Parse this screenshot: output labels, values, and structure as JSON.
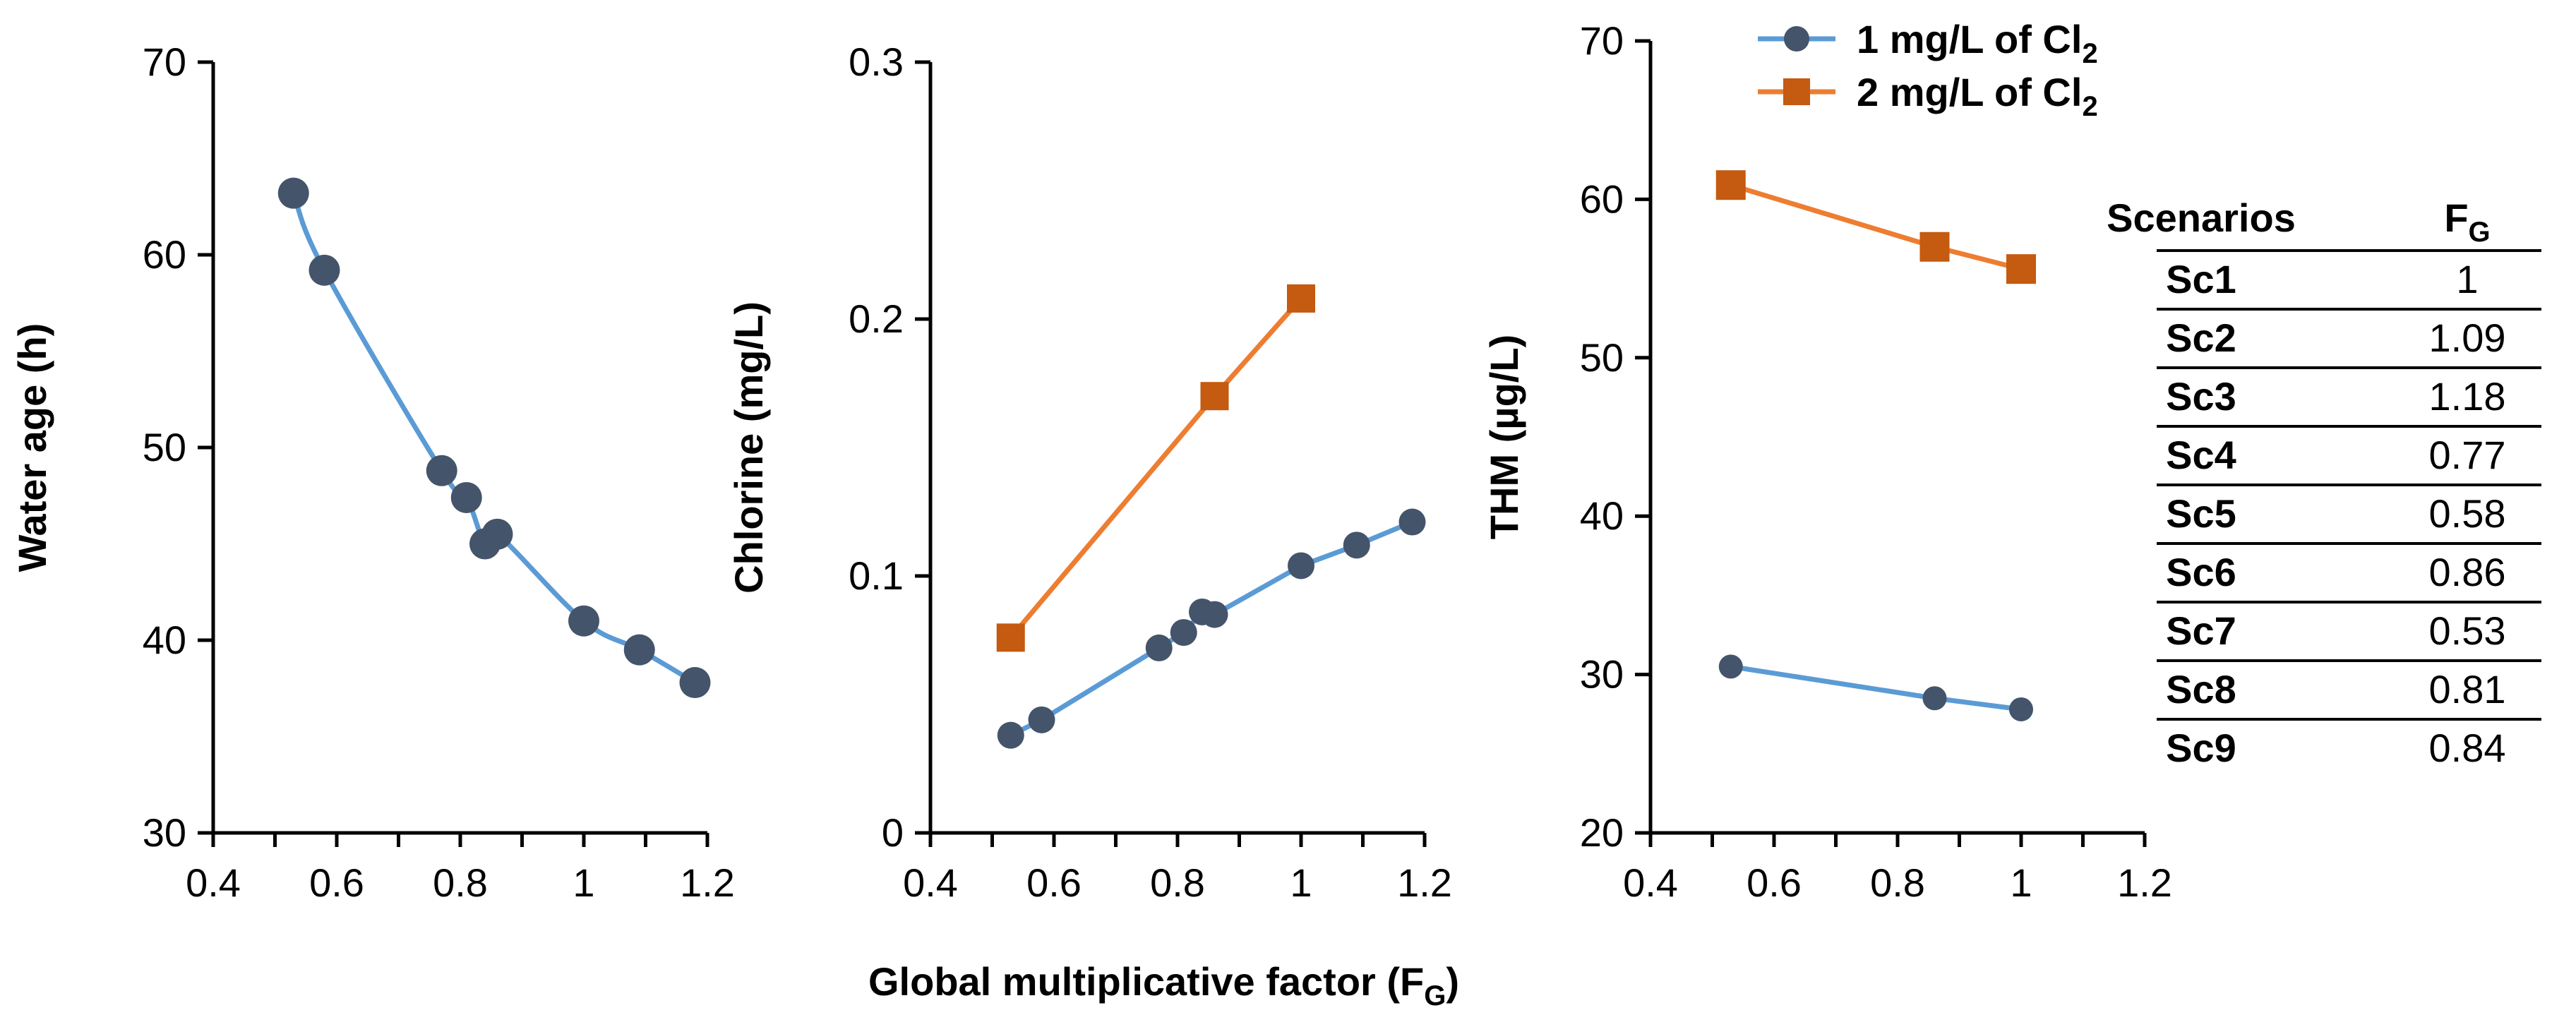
{
  "chart_data": [
    {
      "type": "line",
      "ylabel": "Water age (h)",
      "xlim": [
        0.4,
        1.2
      ],
      "ylim": [
        30,
        70
      ],
      "x_ticks": [
        "0.4",
        "0.6",
        "0.8",
        "1",
        "1.2"
      ],
      "y_ticks": [
        "30",
        "40",
        "50",
        "60",
        "70"
      ],
      "series": [
        {
          "name": "Water age",
          "color": "#5B9BD5",
          "marker_color": "#44546A",
          "marker": "circle",
          "x": [
            0.53,
            0.58,
            0.77,
            0.81,
            0.84,
            0.86,
            1.0,
            1.09,
            1.18
          ],
          "y": [
            63.2,
            59.2,
            48.8,
            47.4,
            45.0,
            45.5,
            41.0,
            39.5,
            37.8
          ]
        }
      ]
    },
    {
      "type": "line",
      "ylabel": "Chlorine (mg/L)",
      "xlim": [
        0.4,
        1.2
      ],
      "ylim": [
        0,
        0.3
      ],
      "x_ticks": [
        "0.4",
        "0.6",
        "0.8",
        "1",
        "1.2"
      ],
      "y_ticks": [
        "0",
        "0.1",
        "0.2",
        "0.3"
      ],
      "series": [
        {
          "name": "1 mg/L of Cl2",
          "color": "#5B9BD5",
          "marker_color": "#44546A",
          "marker": "circle",
          "x": [
            0.53,
            0.58,
            0.77,
            0.81,
            0.84,
            0.86,
            1.0,
            1.09,
            1.18
          ],
          "y": [
            0.038,
            0.044,
            0.072,
            0.078,
            0.086,
            0.085,
            0.104,
            0.112,
            0.121
          ]
        },
        {
          "name": "2 mg/L of Cl2",
          "color": "#ED7D31",
          "marker_color": "#C55A11",
          "marker": "square",
          "x": [
            0.53,
            0.86,
            1.0
          ],
          "y": [
            0.076,
            0.17,
            0.208
          ]
        }
      ]
    },
    {
      "type": "line",
      "ylabel": "THM (µg/L)",
      "xlim": [
        0.4,
        1.2
      ],
      "ylim": [
        20,
        70
      ],
      "x_ticks": [
        "0.4",
        "0.6",
        "0.8",
        "1",
        "1.2"
      ],
      "y_ticks": [
        "20",
        "30",
        "40",
        "50",
        "60",
        "70"
      ],
      "series": [
        {
          "name": "1 mg/L of Cl2",
          "color": "#5B9BD5",
          "marker_color": "#44546A",
          "marker": "circle",
          "x": [
            0.53,
            0.86,
            1.0
          ],
          "y": [
            30.5,
            28.5,
            27.8
          ]
        },
        {
          "name": "2 mg/L of Cl2",
          "color": "#ED7D31",
          "marker_color": "#C55A11",
          "marker": "square",
          "x": [
            0.53,
            0.86,
            1.0
          ],
          "y": [
            60.9,
            57.0,
            55.6
          ]
        }
      ]
    }
  ],
  "legend": [
    {
      "label": "1 mg/L of Cl",
      "subscript": "2",
      "color": "#5B9BD5",
      "marker_color": "#44546A",
      "marker": "circle"
    },
    {
      "label": "2 mg/L of Cl",
      "subscript": "2",
      "color": "#ED7D31",
      "marker_color": "#C55A11",
      "marker": "square"
    }
  ],
  "shared_xlabel": {
    "text": "Global multiplicative factor (F",
    "subscript": "G",
    "suffix": ")"
  },
  "table": {
    "headers": {
      "scenario": "Scenarios",
      "fg": "F",
      "fg_subscript": "G"
    },
    "rows": [
      {
        "scenario": "Sc1",
        "fg": "1"
      },
      {
        "scenario": "Sc2",
        "fg": "1.09"
      },
      {
        "scenario": "Sc3",
        "fg": "1.18"
      },
      {
        "scenario": "Sc4",
        "fg": "0.77"
      },
      {
        "scenario": "Sc5",
        "fg": "0.58"
      },
      {
        "scenario": "Sc6",
        "fg": "0.86"
      },
      {
        "scenario": "Sc7",
        "fg": "0.53"
      },
      {
        "scenario": "Sc8",
        "fg": "0.81"
      },
      {
        "scenario": "Sc9",
        "fg": "0.84"
      }
    ]
  }
}
